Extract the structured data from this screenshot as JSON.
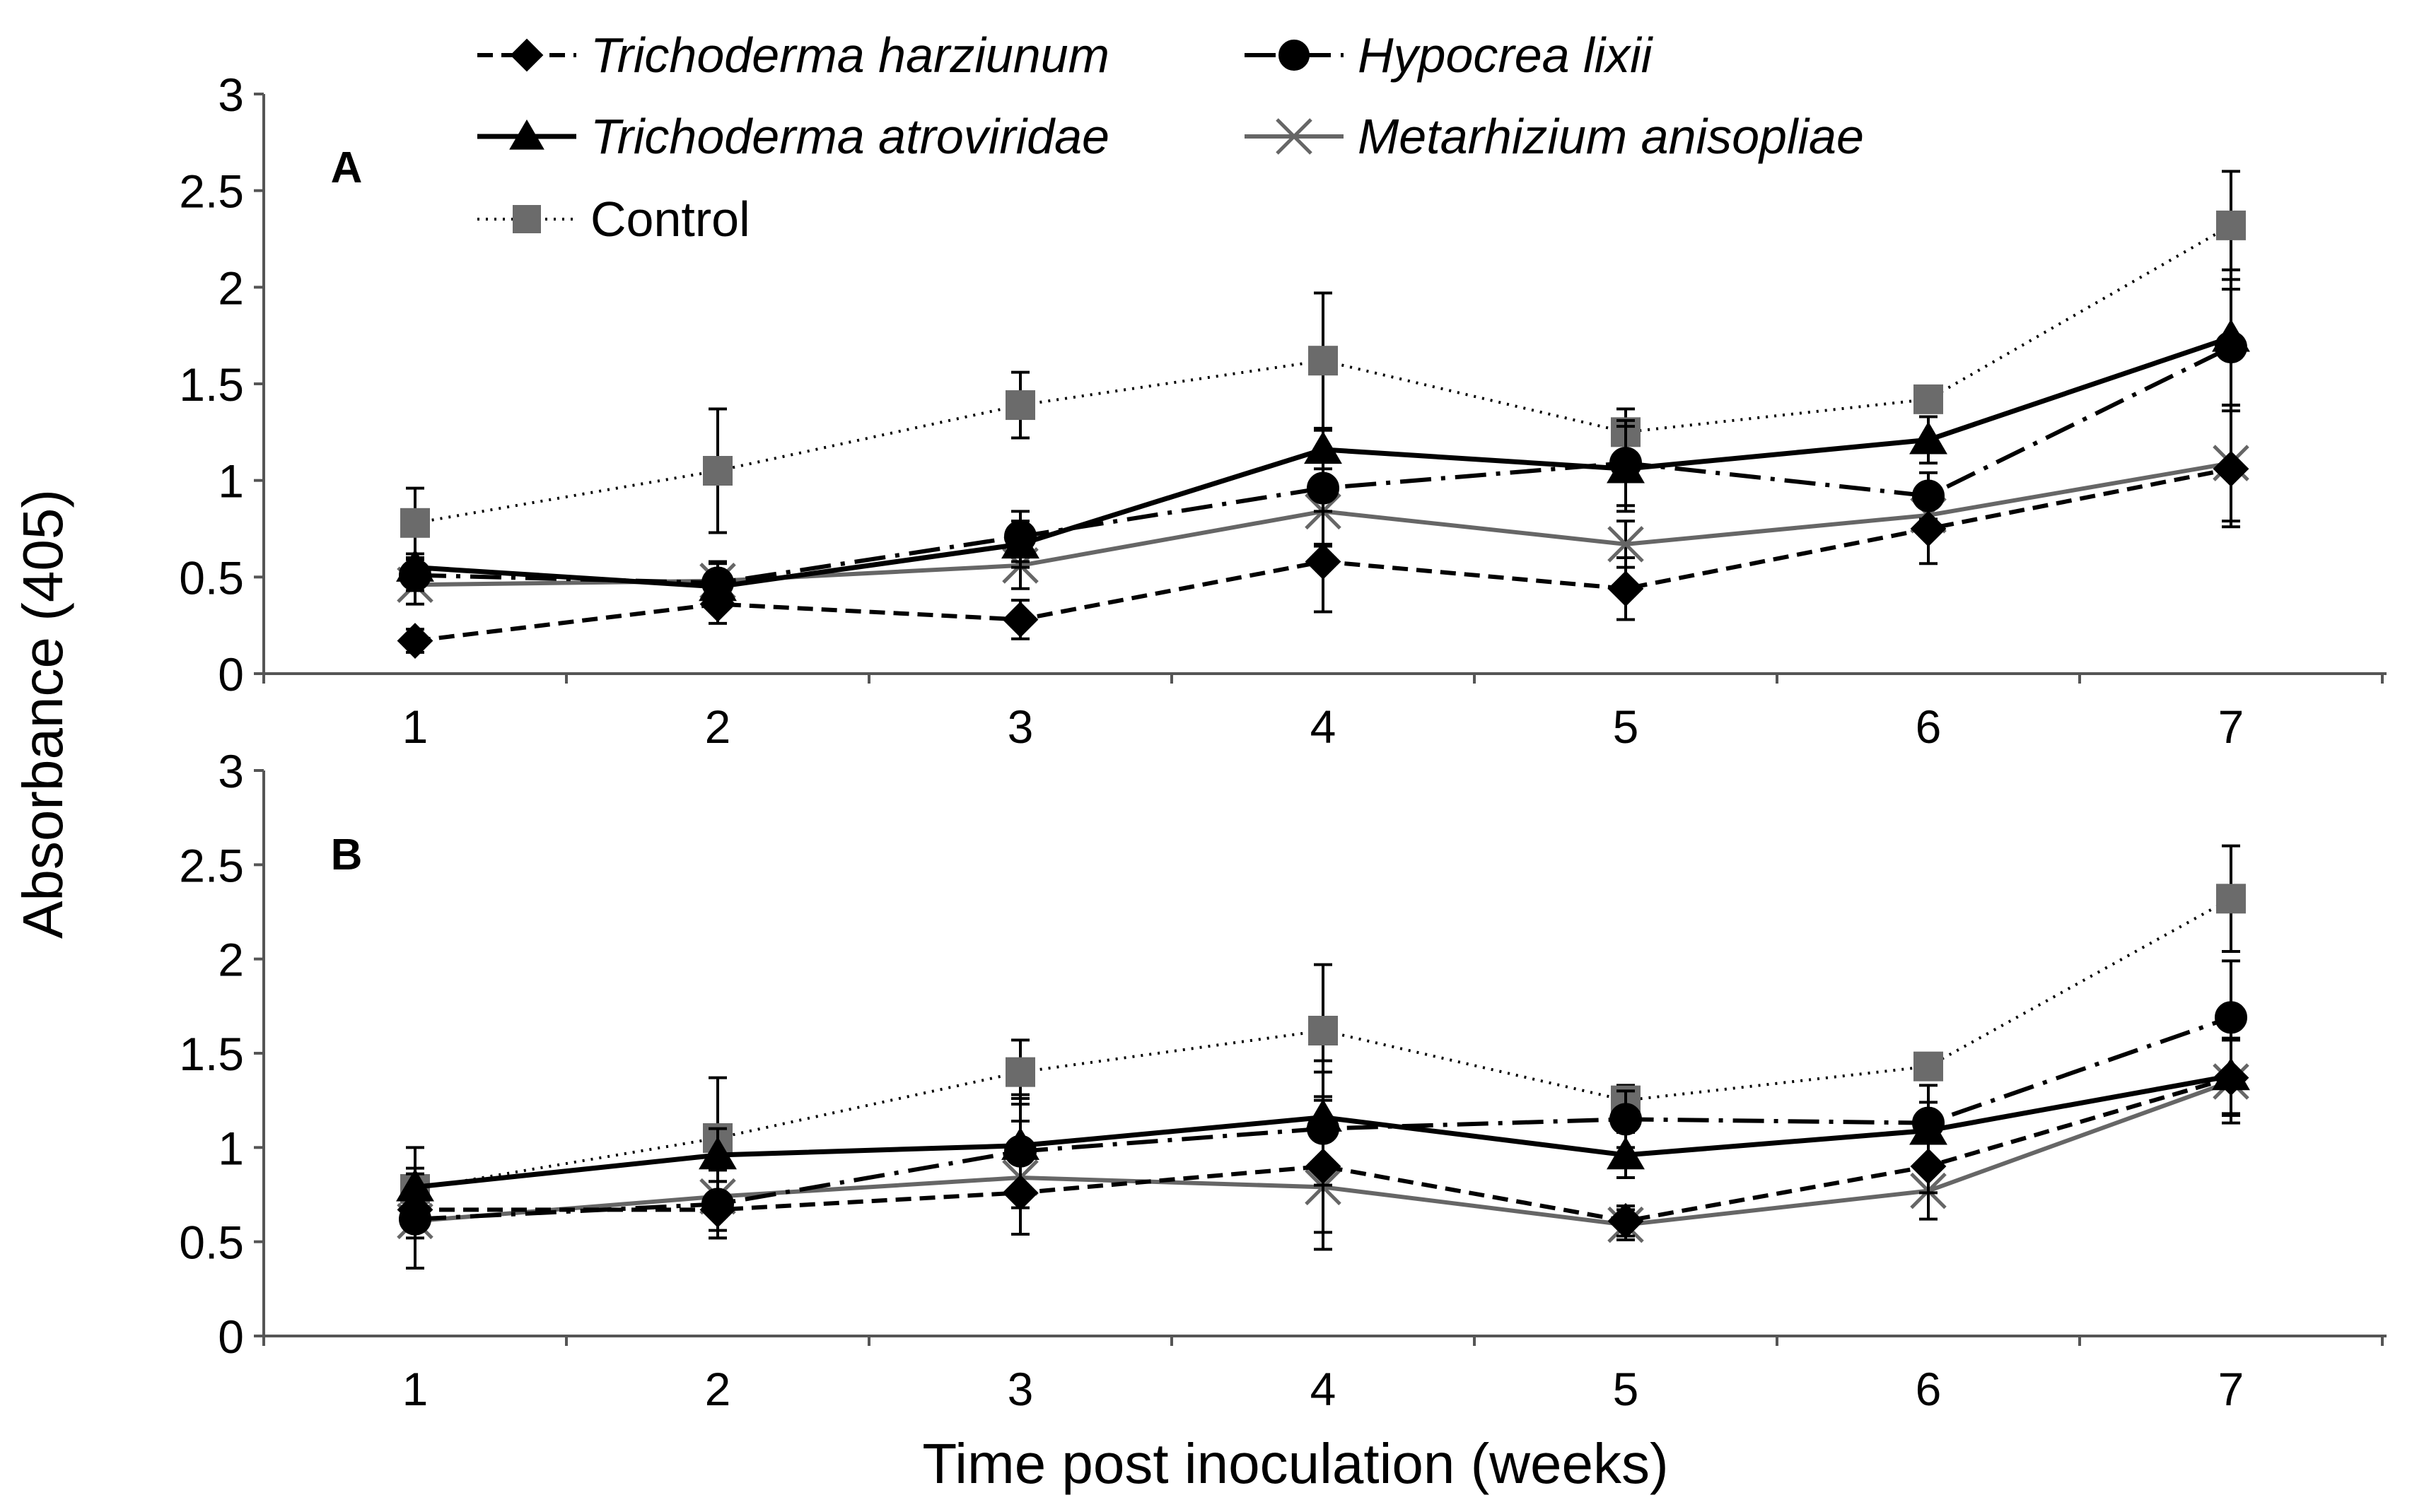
{
  "chart_data": {
    "type": "line",
    "ylabel": "Absorbance (405)",
    "xlabel": "Time post inoculation (weeks)",
    "x": [
      1,
      2,
      3,
      4,
      5,
      6,
      7
    ],
    "ylim": [
      0,
      3
    ],
    "yticks": [
      "0",
      "0.5",
      "1",
      "1.5",
      "2",
      "2.5",
      "3"
    ],
    "legend": [
      {
        "name": "Trichoderma harziunum",
        "series": "th"
      },
      {
        "name": "Hypocrea lixii",
        "series": "hl"
      },
      {
        "name": "Trichoderma atroviridae",
        "series": "ta"
      },
      {
        "name": "Metarhizium anisopliae",
        "series": "ma"
      },
      {
        "name": "Control",
        "series": "co"
      }
    ],
    "colors": {
      "black": "#000000",
      "gray": "#666666",
      "control": "#6b6b6b"
    },
    "panels": [
      {
        "label": "A",
        "series": [
          {
            "id": "co",
            "name": "Control",
            "values": [
              0.78,
              1.05,
              1.39,
              1.62,
              1.25,
              1.42,
              2.32
            ],
            "errors": [
              0.18,
              0.32,
              0.17,
              0.35,
              0.12,
              0.05,
              0.28
            ]
          },
          {
            "id": "ma",
            "name": "Metarhizium anisopliae",
            "values": [
              0.46,
              0.48,
              0.56,
              0.84,
              0.67,
              0.82,
              1.09
            ],
            "errors": [
              0.1,
              0.1,
              0.12,
              0.17,
              0.12,
              0.1,
              0.3
            ]
          },
          {
            "id": "th",
            "name": "Trichoderma harziunum",
            "values": [
              0.17,
              0.36,
              0.28,
              0.58,
              0.44,
              0.75,
              1.06
            ],
            "errors": [
              0.06,
              0.1,
              0.1,
              0.26,
              0.16,
              0.18,
              0.3
            ]
          },
          {
            "id": "hl",
            "name": "Hypocrea lixii",
            "values": [
              0.51,
              0.47,
              0.71,
              0.96,
              1.09,
              0.92,
              1.69
            ],
            "errors": [
              0.08,
              0.1,
              0.13,
              0.3,
              0.22,
              0.12,
              0.3
            ]
          },
          {
            "id": "ta",
            "name": "Trichoderma atroviridae",
            "values": [
              0.55,
              0.45,
              0.67,
              1.16,
              1.06,
              1.21,
              1.74
            ],
            "errors": [
              0.07,
              0.08,
              0.12,
              0.1,
              0.22,
              0.12,
              0.35
            ]
          }
        ]
      },
      {
        "label": "B",
        "series": [
          {
            "id": "co",
            "name": "Control",
            "values": [
              0.78,
              1.05,
              1.4,
              1.62,
              1.25,
              1.43,
              2.32
            ],
            "errors": [
              0.22,
              0.32,
              0.17,
              0.35,
              0.08,
              0.04,
              0.28
            ]
          },
          {
            "id": "ma",
            "name": "Metarhizium anisopliae",
            "values": [
              0.61,
              0.74,
              0.84,
              0.79,
              0.59,
              0.77,
              1.35
            ],
            "errors": [
              0.25,
              0.18,
              0.3,
              0.33,
              0.08,
              0.15,
              0.22
            ]
          },
          {
            "id": "th",
            "name": "Trichoderma harziunum",
            "values": [
              0.67,
              0.67,
              0.76,
              0.9,
              0.61,
              0.9,
              1.37
            ],
            "errors": [
              0.1,
              0.15,
              0.22,
              0.35,
              0.08,
              0.14,
              0.2
            ]
          },
          {
            "id": "hl",
            "name": "Hypocrea lixii",
            "values": [
              0.62,
              0.7,
              0.98,
              1.1,
              1.15,
              1.13,
              1.69
            ],
            "errors": [
              0.1,
              0.18,
              0.3,
              0.3,
              0.15,
              0.2,
              0.3
            ]
          },
          {
            "id": "ta",
            "name": "Trichoderma atroviridae",
            "values": [
              0.79,
              0.96,
              1.01,
              1.16,
              0.96,
              1.09,
              1.38
            ],
            "errors": [
              0.1,
              0.14,
              0.25,
              0.3,
              0.12,
              0.15,
              0.2
            ]
          }
        ]
      }
    ]
  }
}
